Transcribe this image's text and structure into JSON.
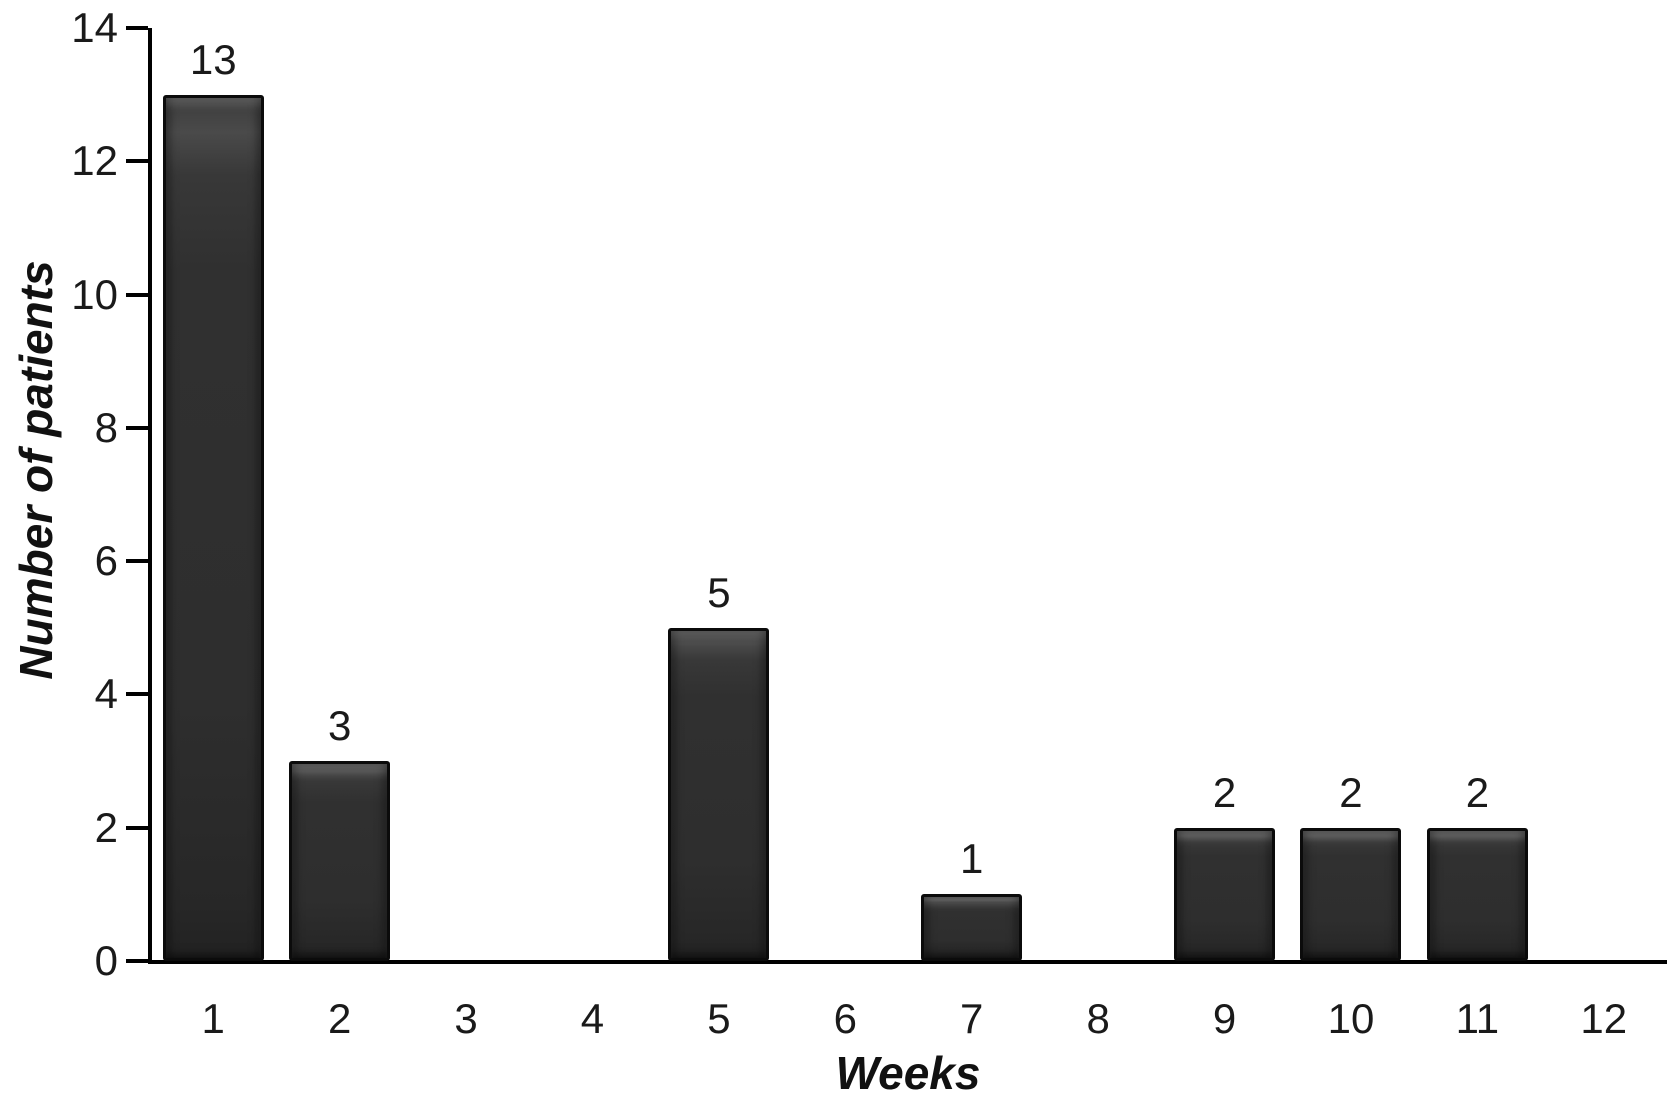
{
  "chart_data": {
    "type": "bar",
    "title": "",
    "xlabel": "Weeks",
    "ylabel": "Number of patients",
    "categories": [
      "1",
      "2",
      "3",
      "4",
      "5",
      "6",
      "7",
      "8",
      "9",
      "10",
      "11",
      "12"
    ],
    "values": [
      13,
      3,
      0,
      0,
      5,
      0,
      1,
      0,
      2,
      2,
      2,
      0
    ],
    "bar_labels": [
      "13",
      "3",
      "",
      "",
      "5",
      "",
      "1",
      "",
      "2",
      "2",
      "2",
      ""
    ],
    "ylim": [
      0,
      14
    ],
    "yticks": [
      0,
      2,
      4,
      6,
      8,
      10,
      12,
      14
    ],
    "grid": false,
    "legend_position": "none",
    "colors": {
      "bar_fill": "#2e2e2e",
      "bar_border": "#0b0b0b",
      "axis": "#000000",
      "text": "#1a1a1a",
      "background": "#ffffff"
    }
  }
}
